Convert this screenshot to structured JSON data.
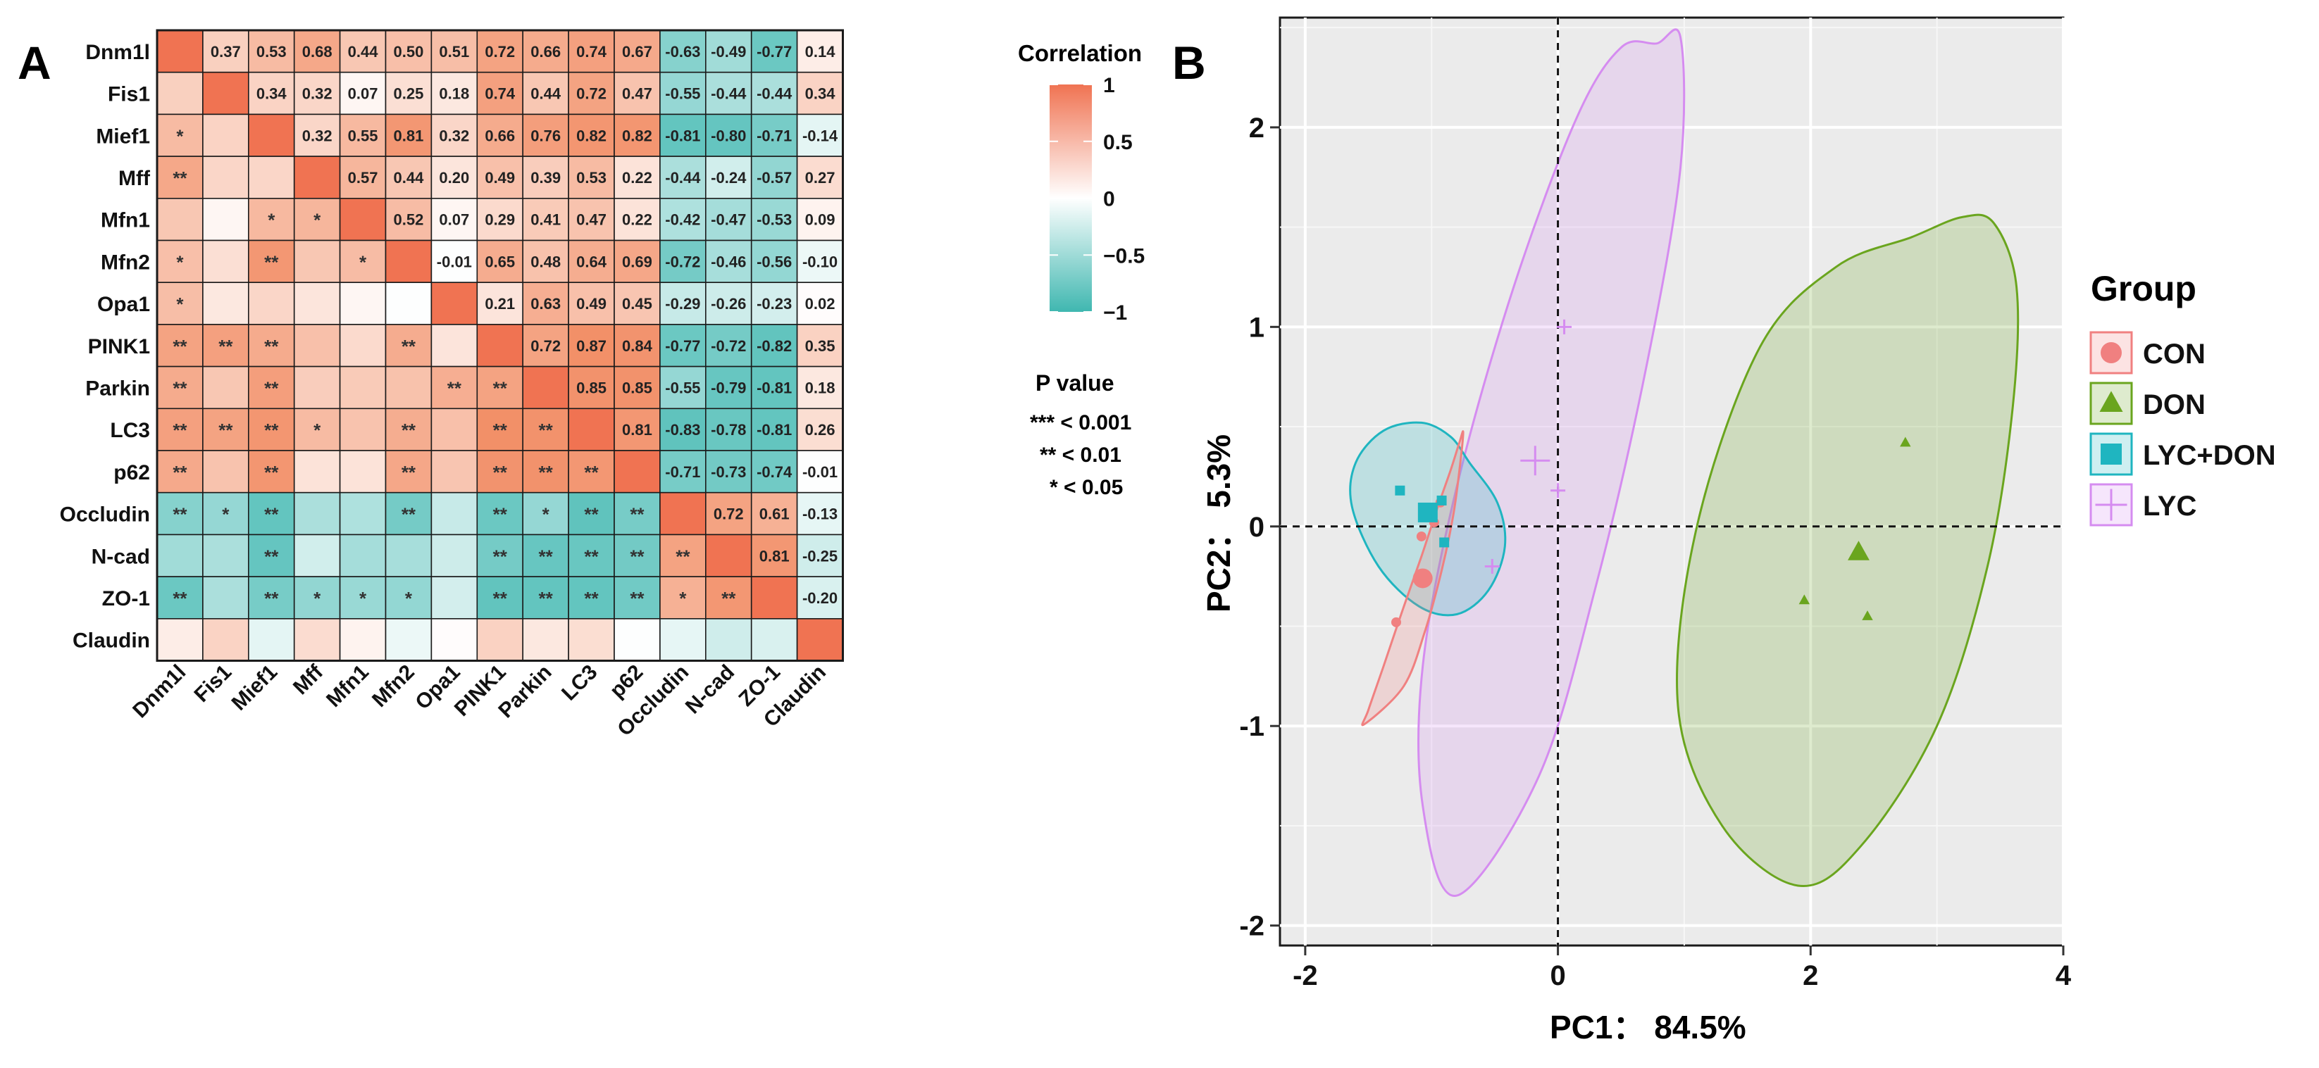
{
  "chart_data": [
    {
      "type": "heatmap",
      "panel_label": "A",
      "variables": [
        "Dnm1l",
        "Fis1",
        "Mief1",
        "Mff",
        "Mfn1",
        "Mfn2",
        "Opa1",
        "PINK1",
        "Parkin",
        "LC3",
        "p62",
        "Occludin",
        "N-cad",
        "ZO-1",
        "Claudin"
      ],
      "upper_values": [
        [
          null,
          "0.37",
          "0.53",
          "0.68",
          "0.44",
          "0.50",
          "0.51",
          "0.72",
          "0.66",
          "0.74",
          "0.67",
          "-0.63",
          "-0.49",
          "-0.77",
          "0.14"
        ],
        [
          null,
          null,
          "0.34",
          "0.32",
          "0.07",
          "0.25",
          "0.18",
          "0.74",
          "0.44",
          "0.72",
          "0.47",
          "-0.55",
          "-0.44",
          "-0.44",
          "0.34"
        ],
        [
          null,
          null,
          null,
          "0.32",
          "0.55",
          "0.81",
          "0.32",
          "0.66",
          "0.76",
          "0.82",
          "0.82",
          "-0.81",
          "-0.80",
          "-0.71",
          "-0.14"
        ],
        [
          null,
          null,
          null,
          null,
          "0.57",
          "0.44",
          "0.20",
          "0.49",
          "0.39",
          "0.53",
          "0.22",
          "-0.44",
          "-0.24",
          "-0.57",
          "0.27"
        ],
        [
          null,
          null,
          null,
          null,
          null,
          "0.52",
          "0.07",
          "0.29",
          "0.41",
          "0.47",
          "0.22",
          "-0.42",
          "-0.47",
          "-0.53",
          "0.09"
        ],
        [
          null,
          null,
          null,
          null,
          null,
          null,
          "-0.01",
          "0.65",
          "0.48",
          "0.64",
          "0.69",
          "-0.72",
          "-0.46",
          "-0.56",
          "-0.10"
        ],
        [
          null,
          null,
          null,
          null,
          null,
          null,
          null,
          "0.21",
          "0.63",
          "0.49",
          "0.45",
          "-0.29",
          "-0.26",
          "-0.23",
          "0.02"
        ],
        [
          null,
          null,
          null,
          null,
          null,
          null,
          null,
          null,
          "0.72",
          "0.87",
          "0.84",
          "-0.77",
          "-0.72",
          "-0.82",
          "0.35"
        ],
        [
          null,
          null,
          null,
          null,
          null,
          null,
          null,
          null,
          null,
          "0.85",
          "0.85",
          "-0.55",
          "-0.79",
          "-0.81",
          "0.18"
        ],
        [
          null,
          null,
          null,
          null,
          null,
          null,
          null,
          null,
          null,
          null,
          "0.81",
          "-0.83",
          "-0.78",
          "-0.81",
          "0.26"
        ],
        [
          null,
          null,
          null,
          null,
          null,
          null,
          null,
          null,
          null,
          null,
          null,
          "-0.71",
          "-0.73",
          "-0.74",
          "-0.01"
        ],
        [
          null,
          null,
          null,
          null,
          null,
          null,
          null,
          null,
          null,
          null,
          null,
          null,
          "0.72",
          "0.61",
          "-0.13"
        ],
        [
          null,
          null,
          null,
          null,
          null,
          null,
          null,
          null,
          null,
          null,
          null,
          null,
          null,
          "0.81",
          "-0.25"
        ],
        [
          null,
          null,
          null,
          null,
          null,
          null,
          null,
          null,
          null,
          null,
          null,
          null,
          null,
          null,
          "-0.20"
        ],
        [
          null,
          null,
          null,
          null,
          null,
          null,
          null,
          null,
          null,
          null,
          null,
          null,
          null,
          null,
          null
        ]
      ],
      "lower_stars": [
        [
          "",
          "",
          "",
          "",
          "",
          "",
          "",
          "",
          "",
          "",
          "",
          "",
          "",
          "",
          ""
        ],
        [
          "",
          "",
          "",
          "",
          "",
          "",
          "",
          "",
          "",
          "",
          "",
          "",
          "",
          "",
          ""
        ],
        [
          "*",
          "",
          "",
          "",
          "",
          "",
          "",
          "",
          "",
          "",
          "",
          "",
          "",
          "",
          ""
        ],
        [
          "**",
          "",
          "",
          "",
          "",
          "",
          "",
          "",
          "",
          "",
          "",
          "",
          "",
          "",
          ""
        ],
        [
          "",
          "",
          "*",
          "*",
          "",
          "",
          "",
          "",
          "",
          "",
          "",
          "",
          "",
          "",
          ""
        ],
        [
          "*",
          "",
          "**",
          "",
          "*",
          "",
          "",
          "",
          "",
          "",
          "",
          "",
          "",
          "",
          ""
        ],
        [
          "*",
          "",
          "",
          "",
          "",
          "",
          "",
          "",
          "",
          "",
          "",
          "",
          "",
          "",
          ""
        ],
        [
          "**",
          "**",
          "**",
          "",
          "",
          "**",
          "",
          "",
          "",
          "",
          "",
          "",
          "",
          "",
          ""
        ],
        [
          "**",
          "",
          "**",
          "",
          "",
          "",
          "**",
          "**",
          "",
          "",
          "",
          "",
          "",
          "",
          ""
        ],
        [
          "**",
          "**",
          "**",
          "*",
          "",
          "**",
          "",
          "**",
          "**",
          "",
          "",
          "",
          "",
          "",
          ""
        ],
        [
          "**",
          "",
          "**",
          "",
          "",
          "**",
          "",
          "**",
          "**",
          "**",
          "",
          "",
          "",
          "",
          ""
        ],
        [
          "**",
          "*",
          "**",
          "",
          "",
          "**",
          "",
          "**",
          "*",
          "**",
          "**",
          "",
          "",
          "",
          ""
        ],
        [
          "",
          "",
          "**",
          "",
          "",
          "",
          "",
          "**",
          "**",
          "**",
          "**",
          "**",
          "",
          "",
          ""
        ],
        [
          "**",
          "",
          "**",
          "*",
          "*",
          "*",
          "",
          "**",
          "**",
          "**",
          "**",
          "*",
          "**",
          "",
          ""
        ],
        [
          "",
          "",
          "",
          "",
          "",
          "",
          "",
          "",
          "",
          "",
          "",
          "",
          "",
          "",
          ""
        ]
      ],
      "legend": {
        "title": "Correlation",
        "ticks": [
          "1",
          "0.5",
          "0",
          "−0.5",
          "−1"
        ],
        "tick_values": [
          1,
          0.5,
          0,
          -0.5,
          -1
        ]
      },
      "pvalue_legend": {
        "title": "P value",
        "items": [
          "*** < 0.001",
          "** < 0.01",
          "* < 0.05"
        ]
      },
      "colors": {
        "positive": "#f07f5f",
        "negative": "#3fb7b0",
        "neutral": "#ffffff",
        "diagonal": "#f07352"
      }
    },
    {
      "type": "scatter",
      "panel_label": "B",
      "xlabel": "PC1： 84.5%",
      "ylabel": "PC2： 5.3%",
      "xlim": [
        -2.2,
        4.0
      ],
      "ylim": [
        -2.1,
        2.55
      ],
      "xticks": [
        -2,
        0,
        2,
        4
      ],
      "xtick_labels": [
        "-2",
        "0",
        "2",
        "4"
      ],
      "yticks": [
        -2,
        -1,
        0,
        1,
        2
      ],
      "ytick_labels": [
        "-2",
        "-1",
        "0",
        "1",
        "2"
      ],
      "legend_title": "Group",
      "series": [
        {
          "name": "CON",
          "color": "#f08080",
          "marker": "circle",
          "points": [
            [
              -1.08,
              -0.05
            ],
            [
              -0.98,
              0.02
            ],
            [
              -1.28,
              -0.48
            ],
            [
              -0.93,
              0.12
            ]
          ],
          "centroid": [
            -1.07,
            -0.26
          ],
          "ellipse": [
            [
              -0.75,
              0.47
            ],
            [
              -0.78,
              0.28
            ],
            [
              -0.83,
              0.05
            ],
            [
              -0.92,
              -0.22
            ],
            [
              -1.05,
              -0.52
            ],
            [
              -1.22,
              -0.8
            ],
            [
              -1.53,
              -0.99
            ],
            [
              -1.5,
              -0.92
            ],
            [
              -1.38,
              -0.7
            ],
            [
              -1.23,
              -0.42
            ],
            [
              -1.08,
              -0.15
            ],
            [
              -0.95,
              0.1
            ],
            [
              -0.85,
              0.28
            ],
            [
              -0.78,
              0.42
            ]
          ]
        },
        {
          "name": "DON",
          "color": "#6aa51e",
          "marker": "triangle",
          "points": [
            [
              2.75,
              0.42
            ],
            [
              1.95,
              -0.37
            ],
            [
              2.45,
              -0.45
            ]
          ],
          "centroid": [
            2.38,
            -0.13
          ],
          "ellipse": [
            [
              3.45,
              1.52
            ],
            [
              3.63,
              1.2
            ],
            [
              3.6,
              0.6
            ],
            [
              3.4,
              -0.2
            ],
            [
              3.0,
              -1.0
            ],
            [
              2.4,
              -1.6
            ],
            [
              1.9,
              -1.8
            ],
            [
              1.3,
              -1.5
            ],
            [
              0.95,
              -0.9
            ],
            [
              1.1,
              0.0
            ],
            [
              1.6,
              0.9
            ],
            [
              2.2,
              1.3
            ],
            [
              2.8,
              1.45
            ],
            [
              3.2,
              1.55
            ]
          ]
        },
        {
          "name": "LYC+DON",
          "color": "#1fb5c0",
          "marker": "square",
          "points": [
            [
              -1.25,
              0.18
            ],
            [
              -0.92,
              0.13
            ],
            [
              -0.9,
              -0.08
            ]
          ],
          "centroid": [
            -1.03,
            0.07
          ],
          "ellipse": [
            [
              -0.7,
              0.32
            ],
            [
              -0.48,
              0.12
            ],
            [
              -0.42,
              -0.1
            ],
            [
              -0.55,
              -0.32
            ],
            [
              -0.8,
              -0.44
            ],
            [
              -1.1,
              -0.4
            ],
            [
              -1.42,
              -0.2
            ],
            [
              -1.63,
              0.1
            ],
            [
              -1.6,
              0.32
            ],
            [
              -1.38,
              0.48
            ],
            [
              -1.08,
              0.52
            ],
            [
              -0.85,
              0.45
            ]
          ]
        },
        {
          "name": "LYC",
          "color": "#d58cf0",
          "marker": "cross",
          "points": [
            [
              0.05,
              1.0
            ],
            [
              0.0,
              0.18
            ],
            [
              -0.52,
              -0.2
            ]
          ],
          "centroid": [
            -0.18,
            0.33
          ],
          "ellipse": [
            [
              0.78,
              2.42
            ],
            [
              0.97,
              2.45
            ],
            [
              0.97,
              1.8
            ],
            [
              0.7,
              0.8
            ],
            [
              0.3,
              -0.3
            ],
            [
              -0.15,
              -1.25
            ],
            [
              -0.8,
              -1.85
            ],
            [
              -1.07,
              -1.4
            ],
            [
              -1.07,
              -0.7
            ],
            [
              -0.8,
              0.2
            ],
            [
              -0.35,
              1.2
            ],
            [
              0.15,
              2.05
            ],
            [
              0.5,
              2.4
            ]
          ]
        }
      ]
    }
  ]
}
